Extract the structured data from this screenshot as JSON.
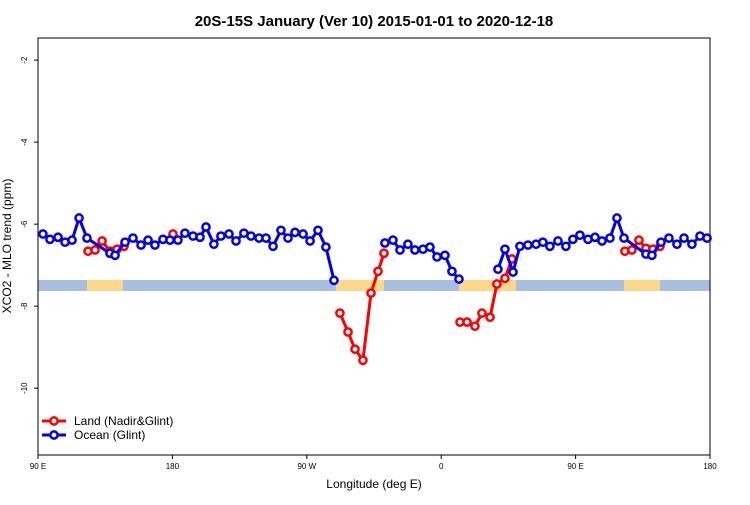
{
  "chart_data": {
    "type": "line",
    "title": "20S-15S January (Ver 10)   2015-01-01 to 2020-12-18",
    "x_label": "Longitude (deg E)",
    "y_label": "XCO2 - MLO trend (ppm)",
    "xlim": [
      90,
      540
    ],
    "ylim": [
      -11.63,
      -1.46
    ],
    "xticks": [
      {
        "value": 90,
        "label": "90 E"
      },
      180,
      {
        "value": 270,
        "label": "90 W"
      },
      {
        "value": 360,
        "label": "0"
      },
      {
        "value": 450,
        "label": "90 E"
      },
      {
        "value": 540,
        "label": "180"
      }
    ],
    "yticks": [
      -2,
      -4,
      -6,
      -8,
      -10
    ],
    "legend": "bottom-left",
    "series": [
      {
        "name": "Land (Nadir&Glint)",
        "color": "#ff0000",
        "x": [
          123.5,
          128.2,
          132.9,
          138.2,
          142.9,
          147.6,
          160,
          180.4,
          200,
          292.2,
          297.6,
          302.3,
          307.6,
          313.0,
          317.7,
          321.7,
          340,
          372.6,
          377.3,
          382.6,
          387.3,
          392.7,
          397.3,
          402.7,
          407.4,
          450,
          483.0,
          487.7,
          492.4,
          497.1,
          501.8,
          506.5
        ],
        "values": [
          -6.66,
          -6.63,
          -6.41,
          -6.66,
          -6.61,
          -6.54,
          null,
          -6.24,
          null,
          -8.17,
          -8.63,
          -9.05,
          -9.32,
          -7.68,
          -7.15,
          -6.71,
          null,
          -8.39,
          -8.39,
          -8.49,
          -8.17,
          -8.27,
          -7.46,
          -7.32,
          -6.85,
          null,
          -6.66,
          -6.63,
          -6.39,
          -6.59,
          -6.61,
          -6.54
        ]
      },
      {
        "name": "Ocean (Glint)",
        "color": "#0000ee",
        "x": [
          93.3,
          98.0,
          103.4,
          108.1,
          112.8,
          117.5,
          122.8,
          138.2,
          141.6,
          148.3,
          153.6,
          159.0,
          163.7,
          168.3,
          173.7,
          178.4,
          183.7,
          188.4,
          193.8,
          198.5,
          202.5,
          207.8,
          212.5,
          217.9,
          222.6,
          227.9,
          232.6,
          238.0,
          242.7,
          247.4,
          252.7,
          257.4,
          262.1,
          267.5,
          272.2,
          277.5,
          282.8,
          288.2,
          305,
          322.3,
          327.7,
          332.4,
          337.7,
          342.4,
          347.8,
          352.5,
          357.2,
          362.5,
          367.2,
          371.9,
          385,
          398.0,
          402.7,
          408.1,
          412.7,
          418.1,
          423.5,
          428.1,
          432.8,
          438.2,
          443.5,
          448.2,
          452.9,
          458.3,
          463.0,
          467.7,
          473.0,
          477.7,
          482.4,
          497.1,
          501.1,
          507.2,
          512.5,
          517.9,
          522.6,
          527.9,
          533.3,
          538.0
        ],
        "values": [
          -6.24,
          -6.37,
          -6.32,
          -6.44,
          -6.39,
          -5.85,
          -6.34,
          -6.71,
          -6.76,
          -6.44,
          -6.34,
          -6.51,
          -6.39,
          -6.51,
          -6.37,
          -6.39,
          -6.39,
          -6.22,
          -6.29,
          -6.32,
          -6.07,
          -6.49,
          -6.29,
          -6.24,
          -6.41,
          -6.22,
          -6.29,
          -6.34,
          -6.34,
          -6.54,
          -6.15,
          -6.34,
          -6.2,
          -6.24,
          -6.41,
          -6.15,
          -6.56,
          -7.37,
          null,
          -6.46,
          -6.39,
          -6.63,
          -6.49,
          -6.63,
          -6.61,
          -6.56,
          -6.8,
          -6.76,
          -7.15,
          -7.34,
          null,
          -7.1,
          -6.61,
          -7.17,
          -6.54,
          -6.51,
          -6.49,
          -6.44,
          -6.54,
          -6.41,
          -6.54,
          -6.37,
          -6.27,
          -6.37,
          -6.32,
          -6.41,
          -6.34,
          -5.85,
          -6.34,
          -6.73,
          -6.76,
          -6.44,
          -6.34,
          -6.49,
          -6.34,
          -6.49,
          -6.29,
          -6.34
        ]
      }
    ]
  }
}
